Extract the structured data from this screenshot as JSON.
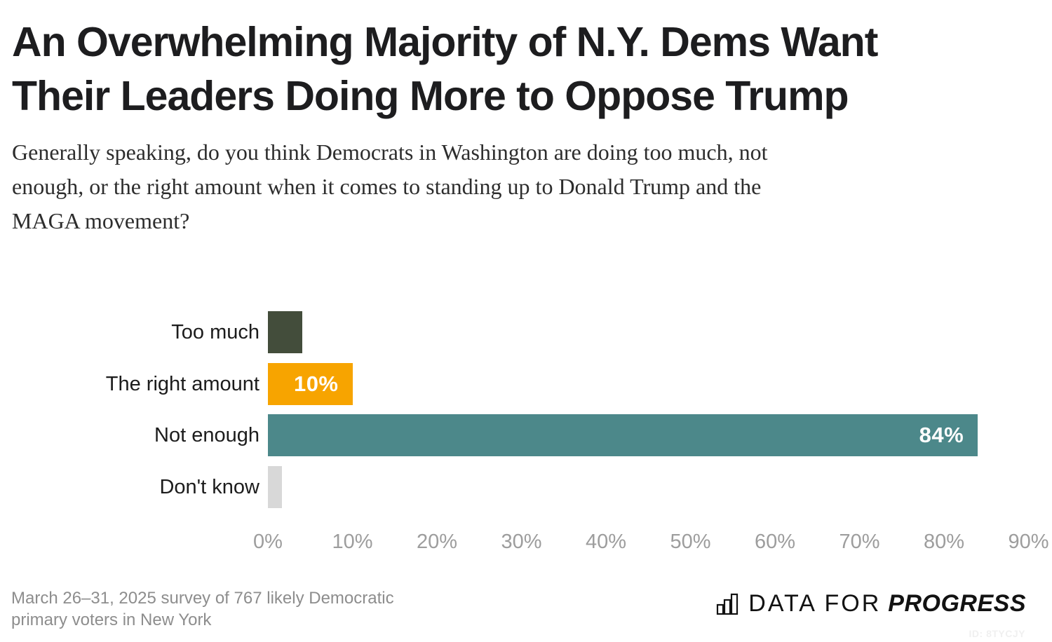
{
  "header": {
    "title_lines": [
      "An Overwhelming Majority of N.Y. Dems Want",
      "Their Leaders Doing More to Oppose Trump"
    ],
    "subtitle_lines": [
      "Generally speaking, do you think Democrats in Washington are doing too much, not",
      "enough, or the right amount when it comes to standing up to Donald Trump and the",
      "MAGA movement?"
    ]
  },
  "chart_data": {
    "type": "bar",
    "orientation": "horizontal",
    "categories": [
      "Too much",
      "The right amount",
      "Not enough",
      "Don't know"
    ],
    "values": [
      4,
      10,
      84,
      2
    ],
    "draw_pct": [
      4.1,
      10,
      84,
      1.5
    ],
    "value_labels": [
      "",
      "10%",
      "84%",
      ""
    ],
    "bar_colors": [
      "#434d3b",
      "#f7a400",
      "#4c888a",
      "#d8d8d8"
    ],
    "xlim": [
      0,
      90
    ],
    "x_tick_labels": [
      "0%",
      "10%",
      "20%",
      "30%",
      "40%",
      "50%",
      "60%",
      "70%",
      "80%",
      "90%"
    ],
    "grid": false,
    "legend": "none",
    "value_label_color": "#ffffff",
    "category_label_color": "#1c1c1c",
    "tick_label_color": "#9d9d9d"
  },
  "footer": {
    "source_line1": "March 26–31, 2025 survey of 767 likely Democratic",
    "source_line2": "primary voters in New York",
    "logo": {
      "icon": "bar-chart-icon",
      "text_light": "DATA FOR",
      "text_bold": "PROGRESS"
    },
    "chart_id": "ID: 8TYCJY"
  }
}
